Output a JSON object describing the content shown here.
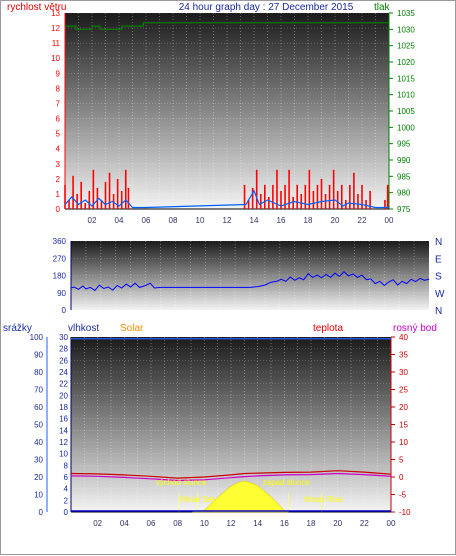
{
  "title": "24 hour graph day : 27 December 2015",
  "x_ticks": [
    "02",
    "04",
    "06",
    "08",
    "10",
    "12",
    "14",
    "16",
    "18",
    "20",
    "22",
    "00"
  ],
  "colors": {
    "wind": "#ff0000",
    "gust": "#0060ff",
    "pressure": "#008000",
    "title": "#1a2aa0",
    "direction": "#0000ff",
    "rain": "#2060ff",
    "humidity": "#0000ff",
    "solar": "#ff8c00",
    "temp": "#cc0000",
    "dew": "#cc00cc",
    "sun": "#ffff33"
  },
  "chart_data": [
    {
      "type": "line",
      "name": "wind-pressure",
      "ylabel_left": "rychlost větru",
      "ylabel_right": "tlak",
      "ylim_left": [
        0,
        13
      ],
      "ylim_right": [
        975,
        1035
      ],
      "y_ticks_left": [
        "0",
        "1",
        "2",
        "3",
        "4",
        "5",
        "6",
        "7",
        "8",
        "9",
        "10",
        "11",
        "12",
        "13"
      ],
      "y_ticks_right": [
        "975",
        "980",
        "985",
        "990",
        "995",
        "1000",
        "1005",
        "1010",
        "1015",
        "1020",
        "1025",
        "1030",
        "1035"
      ],
      "wind": [
        [
          0.0,
          1.6
        ],
        [
          0.3,
          0.6
        ],
        [
          0.6,
          2.2
        ],
        [
          0.9,
          1.0
        ],
        [
          1.2,
          1.8
        ],
        [
          1.5,
          0.4
        ],
        [
          1.8,
          1.2
        ],
        [
          2.1,
          2.6
        ],
        [
          2.4,
          1.4
        ],
        [
          2.7,
          0.6
        ],
        [
          3.0,
          1.8
        ],
        [
          3.3,
          2.4
        ],
        [
          3.6,
          1.0
        ],
        [
          3.9,
          2.0
        ],
        [
          4.2,
          1.2
        ],
        [
          4.5,
          2.6
        ],
        [
          4.7,
          1.4
        ],
        [
          13.3,
          1.6
        ],
        [
          13.6,
          0.6
        ],
        [
          13.9,
          1.4
        ],
        [
          14.2,
          2.6
        ],
        [
          14.5,
          1.0
        ],
        [
          14.8,
          1.6
        ],
        [
          15.1,
          0.8
        ],
        [
          15.4,
          1.6
        ],
        [
          15.7,
          2.6
        ],
        [
          16.0,
          1.2
        ],
        [
          16.3,
          1.6
        ],
        [
          16.6,
          2.6
        ],
        [
          16.9,
          0.8
        ],
        [
          17.2,
          1.6
        ],
        [
          17.5,
          1.0
        ],
        [
          17.8,
          1.6
        ],
        [
          18.1,
          2.6
        ],
        [
          18.4,
          1.2
        ],
        [
          18.7,
          1.6
        ],
        [
          19.0,
          2.0
        ],
        [
          19.3,
          1.0
        ],
        [
          19.6,
          1.6
        ],
        [
          19.9,
          2.6
        ],
        [
          20.2,
          1.2
        ],
        [
          20.5,
          1.6
        ],
        [
          20.8,
          0.6
        ],
        [
          21.1,
          1.6
        ],
        [
          21.4,
          2.4
        ],
        [
          21.7,
          1.0
        ],
        [
          22.0,
          1.6
        ],
        [
          22.3,
          0.6
        ],
        [
          22.6,
          1.2
        ],
        [
          23.7,
          0.6
        ],
        [
          23.9,
          1.6
        ]
      ],
      "gust": [
        [
          0.0,
          0.3
        ],
        [
          0.5,
          0.8
        ],
        [
          1.0,
          0.3
        ],
        [
          1.5,
          0.6
        ],
        [
          2.0,
          0.2
        ],
        [
          2.5,
          0.7
        ],
        [
          3.0,
          0.3
        ],
        [
          3.5,
          0.5
        ],
        [
          4.0,
          0.2
        ],
        [
          4.5,
          0.6
        ],
        [
          5.0,
          0.1
        ],
        [
          6.0,
          0.1
        ],
        [
          13.4,
          0.3
        ],
        [
          14.0,
          1.2
        ],
        [
          14.4,
          0.3
        ],
        [
          15.0,
          0.6
        ],
        [
          16.0,
          0.2
        ],
        [
          17.0,
          0.5
        ],
        [
          18.0,
          0.3
        ],
        [
          19.0,
          0.5
        ],
        [
          20.0,
          0.6
        ],
        [
          20.6,
          0.2
        ],
        [
          21.0,
          0.4
        ],
        [
          22.0,
          0.3
        ],
        [
          23.0,
          0.1
        ],
        [
          24.0,
          0.1
        ]
      ],
      "pressure": [
        [
          0.0,
          1031
        ],
        [
          0.8,
          1031
        ],
        [
          0.8,
          1030
        ],
        [
          2.0,
          1030
        ],
        [
          2.0,
          1031
        ],
        [
          2.6,
          1031
        ],
        [
          2.6,
          1030
        ],
        [
          4.2,
          1030
        ],
        [
          4.2,
          1031
        ],
        [
          5.8,
          1031
        ],
        [
          5.8,
          1032
        ],
        [
          24.0,
          1032
        ]
      ]
    },
    {
      "type": "line",
      "name": "wind-direction",
      "ylim": [
        0,
        360
      ],
      "y_ticks": [
        "0",
        "90",
        "180",
        "270",
        "360"
      ],
      "compass": [
        "N",
        "W",
        "S",
        "E",
        "N"
      ],
      "values": [
        [
          0.0,
          115
        ],
        [
          0.2,
          120
        ],
        [
          0.5,
          108
        ],
        [
          0.8,
          125
        ],
        [
          1.0,
          110
        ],
        [
          1.3,
          118
        ],
        [
          1.6,
          102
        ],
        [
          1.9,
          130
        ],
        [
          2.2,
          112
        ],
        [
          2.5,
          120
        ],
        [
          2.8,
          104
        ],
        [
          3.1,
          128
        ],
        [
          3.4,
          115
        ],
        [
          3.7,
          135
        ],
        [
          4.0,
          120
        ],
        [
          4.3,
          140
        ],
        [
          4.6,
          118
        ],
        [
          5.0,
          128
        ],
        [
          5.3,
          140
        ],
        [
          5.6,
          115
        ],
        [
          6.0,
          118
        ],
        [
          12.0,
          118
        ],
        [
          12.5,
          122
        ],
        [
          13.0,
          130
        ],
        [
          13.4,
          145
        ],
        [
          13.8,
          150
        ],
        [
          14.1,
          160
        ],
        [
          14.4,
          150
        ],
        [
          14.7,
          172
        ],
        [
          15.0,
          155
        ],
        [
          15.3,
          168
        ],
        [
          15.6,
          158
        ],
        [
          15.9,
          190
        ],
        [
          16.2,
          170
        ],
        [
          16.5,
          182
        ],
        [
          16.8,
          168
        ],
        [
          17.1,
          186
        ],
        [
          17.4,
          170
        ],
        [
          17.7,
          192
        ],
        [
          18.0,
          175
        ],
        [
          18.3,
          200
        ],
        [
          18.6,
          178
        ],
        [
          18.9,
          188
        ],
        [
          19.2,
          170
        ],
        [
          19.5,
          182
        ],
        [
          19.8,
          158
        ],
        [
          20.1,
          162
        ],
        [
          20.4,
          138
        ],
        [
          20.7,
          150
        ],
        [
          21.0,
          128
        ],
        [
          21.3,
          146
        ],
        [
          21.6,
          158
        ],
        [
          21.9,
          130
        ],
        [
          22.2,
          150
        ],
        [
          22.5,
          138
        ],
        [
          22.8,
          160
        ],
        [
          23.1,
          148
        ],
        [
          23.4,
          165
        ],
        [
          23.7,
          155
        ],
        [
          24.0,
          160
        ]
      ]
    },
    {
      "type": "line",
      "name": "rain-humidity-solar-temperature",
      "labels": {
        "rain": "srážky",
        "humidity": "vlhkost",
        "solar": "Solar",
        "temp": "teplota",
        "dew": "rosný bod"
      },
      "ylim_left": [
        0,
        100
      ],
      "ylim_humidity": [
        0,
        30
      ],
      "ylim_right": [
        -10,
        40
      ],
      "y_ticks_left": [
        "0",
        "10",
        "20",
        "30",
        "40",
        "50",
        "60",
        "70",
        "80",
        "90",
        "100"
      ],
      "y_ticks_humidity": [
        "0",
        "2",
        "4",
        "6",
        "8",
        "10",
        "12",
        "14",
        "16",
        "18",
        "20",
        "22",
        "24",
        "26",
        "28",
        "30"
      ],
      "y_ticks_right": [
        "-10",
        "-5",
        "0",
        "5",
        "10",
        "15",
        "20",
        "25",
        "30",
        "35",
        "40"
      ],
      "rain_line": 99,
      "temperature": [
        [
          0.0,
          1.0
        ],
        [
          2.0,
          0.9
        ],
        [
          4.0,
          0.6
        ],
        [
          6.0,
          0.2
        ],
        [
          8.0,
          -0.3
        ],
        [
          10.0,
          0.0
        ],
        [
          12.0,
          0.6
        ],
        [
          13.0,
          1.0
        ],
        [
          14.0,
          1.1
        ],
        [
          16.0,
          1.3
        ],
        [
          18.0,
          1.4
        ],
        [
          20.0,
          1.8
        ],
        [
          22.0,
          1.4
        ],
        [
          24.0,
          0.8
        ]
      ],
      "dew_point": [
        [
          0.0,
          0.3
        ],
        [
          2.0,
          0.2
        ],
        [
          4.0,
          -0.1
        ],
        [
          6.0,
          -0.5
        ],
        [
          8.0,
          -1.0
        ],
        [
          10.0,
          -0.8
        ],
        [
          12.0,
          -0.2
        ],
        [
          13.0,
          0.1
        ],
        [
          14.0,
          0.3
        ],
        [
          16.0,
          0.6
        ],
        [
          18.0,
          0.7
        ],
        [
          20.0,
          1.0
        ],
        [
          22.0,
          0.7
        ],
        [
          24.0,
          0.2
        ]
      ],
      "solar": [
        [
          9.1,
          0
        ],
        [
          10.0,
          0.3
        ],
        [
          11.0,
          2.5
        ],
        [
          12.0,
          4.4
        ],
        [
          12.5,
          5.0
        ],
        [
          13.0,
          5.3
        ],
        [
          13.5,
          5.0
        ],
        [
          14.0,
          4.5
        ],
        [
          15.0,
          2.6
        ],
        [
          16.0,
          0.3
        ],
        [
          16.3,
          0
        ]
      ],
      "annotations": {
        "sunrise": "východ slunce",
        "sunset": "západ slunce",
        "moonset": "Moon Set",
        "moonrise": "Moon Rise"
      },
      "event_hours": {
        "sunrise": 8.1,
        "sunset": 16.3,
        "moonset": 9.5,
        "moonrise": 18.8
      }
    }
  ]
}
